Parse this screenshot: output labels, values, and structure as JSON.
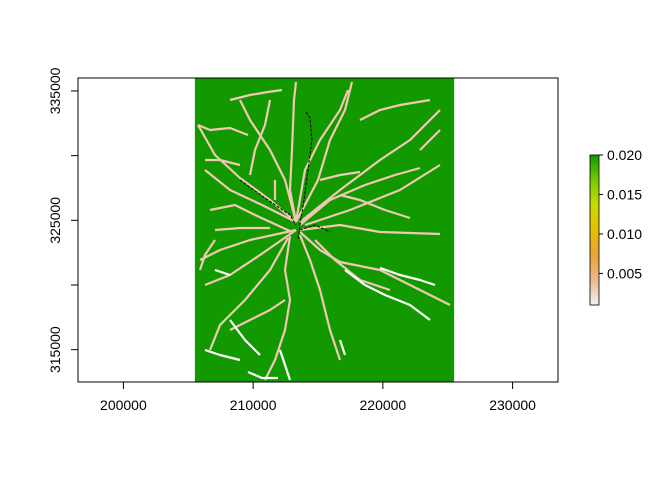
{
  "chart_data": {
    "type": "heatmap",
    "title": "",
    "xlabel": "",
    "ylabel": "",
    "xlim": [
      196500,
      233500
    ],
    "ylim": [
      312500,
      336000
    ],
    "raster_extent": {
      "xmin": 205500,
      "xmax": 225500,
      "ymin": 312500,
      "ymax": 336000
    },
    "x_ticks": [
      {
        "value": 200000,
        "label": "200000"
      },
      {
        "value": 210000,
        "label": "210000"
      },
      {
        "value": 220000,
        "label": "220000"
      },
      {
        "value": 230000,
        "label": "230000"
      }
    ],
    "y_ticks": [
      {
        "value": 315000,
        "label": "315000"
      },
      {
        "value": 320000,
        "label": ""
      },
      {
        "value": 325000,
        "label": "325000"
      },
      {
        "value": 330000,
        "label": ""
      },
      {
        "value": 335000,
        "label": "335000"
      }
    ],
    "legend": {
      "position": "right",
      "min": 0.001,
      "max": 0.02,
      "ticks": [
        {
          "value": 0.005,
          "label": "0.005"
        },
        {
          "value": 0.01,
          "label": "0.010"
        },
        {
          "value": 0.015,
          "label": "0.015"
        },
        {
          "value": 0.02,
          "label": "0.020"
        }
      ],
      "colors": [
        "#f2f2f2",
        "#eab98e",
        "#e8a33a",
        "#e6c000",
        "#c8dc00",
        "#76c800",
        "#109900"
      ]
    },
    "background_value": 0.02,
    "background_color": "#129900",
    "road_color": "#f0c8b4",
    "low_road_color": "#ffffff",
    "rail_color": "#000000"
  }
}
